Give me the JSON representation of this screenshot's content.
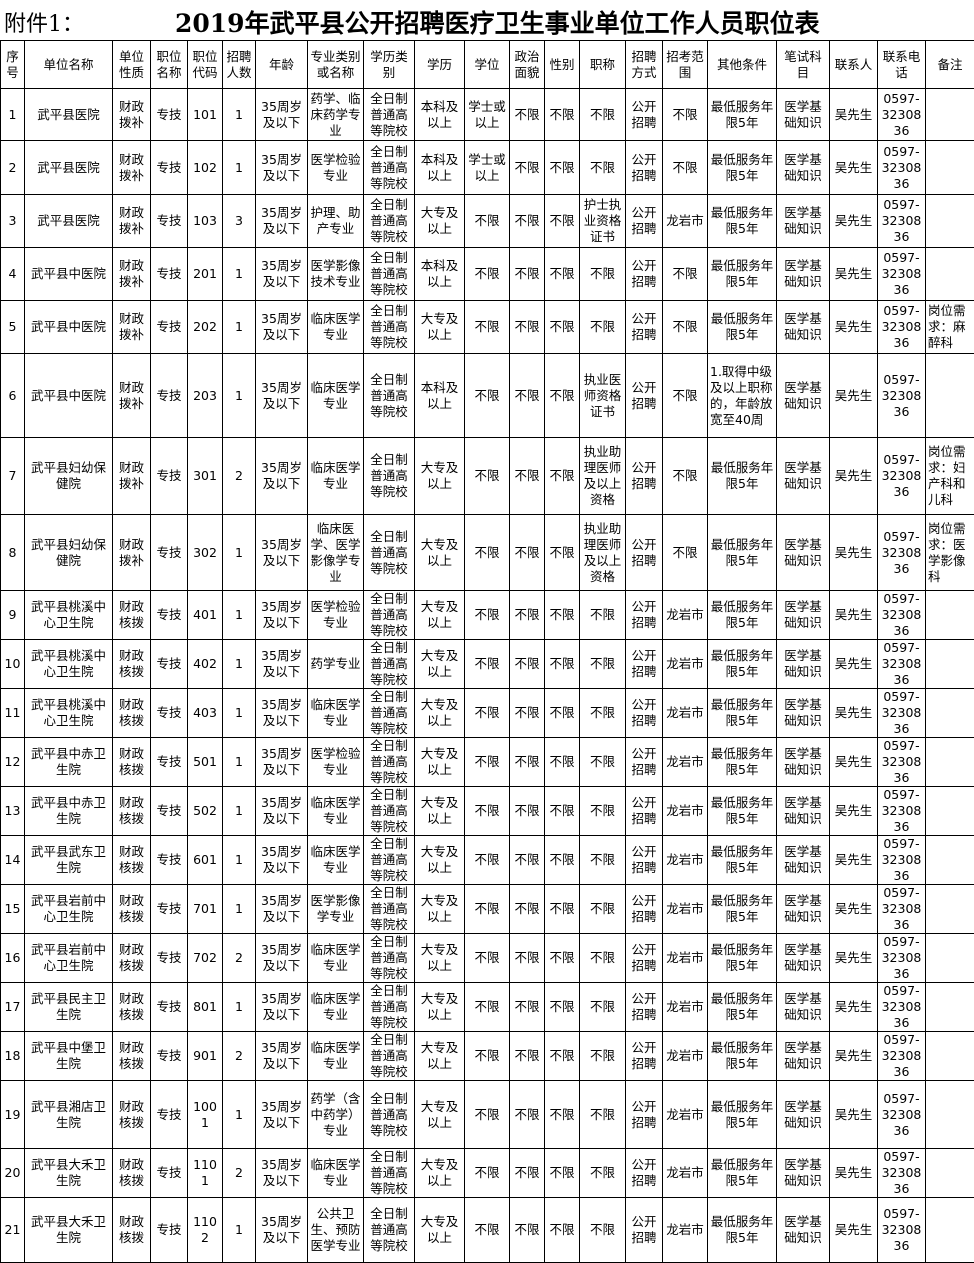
{
  "title_prefix": "附件1：",
  "title": "2019年武平县公开招聘医疗卫生事业单位工作人员职位表",
  "headers": [
    "序号",
    "单位名称",
    "单位性质",
    "职位名称",
    "职位代码",
    "招聘人数",
    "年龄",
    "专业类别或名称",
    "学历类别",
    "学历",
    "学位",
    "政治面貌",
    "性别",
    "职称",
    "招聘方式",
    "招考范围",
    "其他条件",
    "笔试科目",
    "联系人",
    "联系电话",
    "备注"
  ],
  "rows": [
    [
      "1",
      "武平县医院",
      "财政拨补",
      "专技",
      "101",
      "1",
      "35周岁及以下",
      "药学、临床药学专业",
      "全日制普通高等院校",
      "本科及以上",
      "学士或以上",
      "不限",
      "不限",
      "不限",
      "公开招聘",
      "不限",
      "最低服务年限5年",
      "医学基础知识",
      "吴先生",
      "0597-3230836",
      ""
    ],
    [
      "2",
      "武平县医院",
      "财政拨补",
      "专技",
      "102",
      "1",
      "35周岁及以下",
      "医学检验专业",
      "全日制普通高等院校",
      "本科及以上",
      "学士或以上",
      "不限",
      "不限",
      "不限",
      "公开招聘",
      "不限",
      "最低服务年限5年",
      "医学基础知识",
      "吴先生",
      "0597-3230836",
      ""
    ],
    [
      "3",
      "武平县医院",
      "财政拨补",
      "专技",
      "103",
      "3",
      "35周岁及以下",
      "护理、助产专业",
      "全日制普通高等院校",
      "大专及以上",
      "不限",
      "不限",
      "不限",
      "护士执业资格证书",
      "公开招聘",
      "龙岩市",
      "最低服务年限5年",
      "医学基础知识",
      "吴先生",
      "0597-3230836",
      ""
    ],
    [
      "4",
      "武平县中医院",
      "财政拨补",
      "专技",
      "201",
      "1",
      "35周岁及以下",
      "医学影像技术专业",
      "全日制普通高等院校",
      "本科及以上",
      "不限",
      "不限",
      "不限",
      "不限",
      "公开招聘",
      "不限",
      "最低服务年限5年",
      "医学基础知识",
      "吴先生",
      "0597-3230836",
      ""
    ],
    [
      "5",
      "武平县中医院",
      "财政拨补",
      "专技",
      "202",
      "1",
      "35周岁及以下",
      "临床医学专业",
      "全日制普通高等院校",
      "大专及以上",
      "不限",
      "不限",
      "不限",
      "不限",
      "公开招聘",
      "不限",
      "最低服务年限5年",
      "医学基础知识",
      "吴先生",
      "0597-3230836",
      "岗位需求：麻醉科"
    ],
    [
      "6",
      "武平县中医院",
      "财政拨补",
      "专技",
      "203",
      "1",
      "35周岁及以下",
      "临床医学专业",
      "全日制普通高等院校",
      "本科及以上",
      "不限",
      "不限",
      "不限",
      "执业医师资格证书",
      "公开招聘",
      "不限",
      "1.取得中级及以上职称的，年龄放宽至40周",
      "医学基础知识",
      "吴先生",
      "0597-3230836",
      ""
    ],
    [
      "7",
      "武平县妇幼保健院",
      "财政拨补",
      "专技",
      "301",
      "2",
      "35周岁及以下",
      "临床医学专业",
      "全日制普通高等院校",
      "大专及以上",
      "不限",
      "不限",
      "不限",
      "执业助理医师及以上资格",
      "公开招聘",
      "不限",
      "最低服务年限5年",
      "医学基础知识",
      "吴先生",
      "0597-3230836",
      "岗位需求：妇产科和儿科"
    ],
    [
      "8",
      "武平县妇幼保健院",
      "财政拨补",
      "专技",
      "302",
      "1",
      "35周岁及以下",
      "临床医学、医学影像学专业",
      "全日制普通高等院校",
      "大专及以上",
      "不限",
      "不限",
      "不限",
      "执业助理医师及以上资格",
      "公开招聘",
      "不限",
      "最低服务年限5年",
      "医学基础知识",
      "吴先生",
      "0597-3230836",
      "岗位需求：医学影像科"
    ],
    [
      "9",
      "武平县桃溪中心卫生院",
      "财政核拨",
      "专技",
      "401",
      "1",
      "35周岁及以下",
      "医学检验专业",
      "全日制普通高等院校",
      "大专及以上",
      "不限",
      "不限",
      "不限",
      "不限",
      "公开招聘",
      "龙岩市",
      "最低服务年限5年",
      "医学基础知识",
      "吴先生",
      "0597-3230836",
      ""
    ],
    [
      "10",
      "武平县桃溪中心卫生院",
      "财政核拨",
      "专技",
      "402",
      "1",
      "35周岁及以下",
      "药学专业",
      "全日制普通高等院校",
      "大专及以上",
      "不限",
      "不限",
      "不限",
      "不限",
      "公开招聘",
      "龙岩市",
      "最低服务年限5年",
      "医学基础知识",
      "吴先生",
      "0597-3230836",
      ""
    ],
    [
      "11",
      "武平县桃溪中心卫生院",
      "财政核拨",
      "专技",
      "403",
      "1",
      "35周岁及以下",
      "临床医学专业",
      "全日制普通高等院校",
      "大专及以上",
      "不限",
      "不限",
      "不限",
      "不限",
      "公开招聘",
      "龙岩市",
      "最低服务年限5年",
      "医学基础知识",
      "吴先生",
      "0597-3230836",
      ""
    ],
    [
      "12",
      "武平县中赤卫生院",
      "财政核拨",
      "专技",
      "501",
      "1",
      "35周岁及以下",
      "医学检验专业",
      "全日制普通高等院校",
      "大专及以上",
      "不限",
      "不限",
      "不限",
      "不限",
      "公开招聘",
      "龙岩市",
      "最低服务年限5年",
      "医学基础知识",
      "吴先生",
      "0597-3230836",
      ""
    ],
    [
      "13",
      "武平县中赤卫生院",
      "财政核拨",
      "专技",
      "502",
      "1",
      "35周岁及以下",
      "临床医学专业",
      "全日制普通高等院校",
      "大专及以上",
      "不限",
      "不限",
      "不限",
      "不限",
      "公开招聘",
      "龙岩市",
      "最低服务年限5年",
      "医学基础知识",
      "吴先生",
      "0597-3230836",
      ""
    ],
    [
      "14",
      "武平县武东卫生院",
      "财政核拨",
      "专技",
      "601",
      "1",
      "35周岁及以下",
      "临床医学专业",
      "全日制普通高等院校",
      "大专及以上",
      "不限",
      "不限",
      "不限",
      "不限",
      "公开招聘",
      "龙岩市",
      "最低服务年限5年",
      "医学基础知识",
      "吴先生",
      "0597-3230836",
      ""
    ],
    [
      "15",
      "武平县岩前中心卫生院",
      "财政核拨",
      "专技",
      "701",
      "1",
      "35周岁及以下",
      "医学影像学专业",
      "全日制普通高等院校",
      "大专及以上",
      "不限",
      "不限",
      "不限",
      "不限",
      "公开招聘",
      "龙岩市",
      "最低服务年限5年",
      "医学基础知识",
      "吴先生",
      "0597-3230836",
      ""
    ],
    [
      "16",
      "武平县岩前中心卫生院",
      "财政核拨",
      "专技",
      "702",
      "2",
      "35周岁及以下",
      "临床医学专业",
      "全日制普通高等院校",
      "大专及以上",
      "不限",
      "不限",
      "不限",
      "不限",
      "公开招聘",
      "龙岩市",
      "最低服务年限5年",
      "医学基础知识",
      "吴先生",
      "0597-3230836",
      ""
    ],
    [
      "17",
      "武平县民主卫生院",
      "财政核拨",
      "专技",
      "801",
      "1",
      "35周岁及以下",
      "临床医学专业",
      "全日制普通高等院校",
      "大专及以上",
      "不限",
      "不限",
      "不限",
      "不限",
      "公开招聘",
      "龙岩市",
      "最低服务年限5年",
      "医学基础知识",
      "吴先生",
      "0597-3230836",
      ""
    ],
    [
      "18",
      "武平县中堡卫生院",
      "财政核拨",
      "专技",
      "901",
      "2",
      "35周岁及以下",
      "临床医学专业",
      "全日制普通高等院校",
      "大专及以上",
      "不限",
      "不限",
      "不限",
      "不限",
      "公开招聘",
      "龙岩市",
      "最低服务年限5年",
      "医学基础知识",
      "吴先生",
      "0597-3230836",
      ""
    ],
    [
      "19",
      "武平县湘店卫生院",
      "财政核拨",
      "专技",
      "1001",
      "1",
      "35周岁及以下",
      "药学（含中药学）专业",
      "全日制普通高等院校",
      "大专及以上",
      "不限",
      "不限",
      "不限",
      "不限",
      "公开招聘",
      "龙岩市",
      "最低服务年限5年",
      "医学基础知识",
      "吴先生",
      "0597-3230836",
      ""
    ],
    [
      "20",
      "武平县大禾卫生院",
      "财政核拨",
      "专技",
      "1101",
      "2",
      "35周岁及以下",
      "临床医学专业",
      "全日制普通高等院校",
      "大专及以上",
      "不限",
      "不限",
      "不限",
      "不限",
      "公开招聘",
      "龙岩市",
      "最低服务年限5年",
      "医学基础知识",
      "吴先生",
      "0597-3230836",
      ""
    ],
    [
      "21",
      "武平县大禾卫生院",
      "财政核拨",
      "专技",
      "1102",
      "1",
      "35周岁及以下",
      "公共卫生、预防医学专业",
      "全日制普通高等院校",
      "大专及以上",
      "不限",
      "不限",
      "不限",
      "不限",
      "公开招聘",
      "龙岩市",
      "最低服务年限5年",
      "医学基础知识",
      "吴先生",
      "0597-3230836",
      ""
    ]
  ]
}
